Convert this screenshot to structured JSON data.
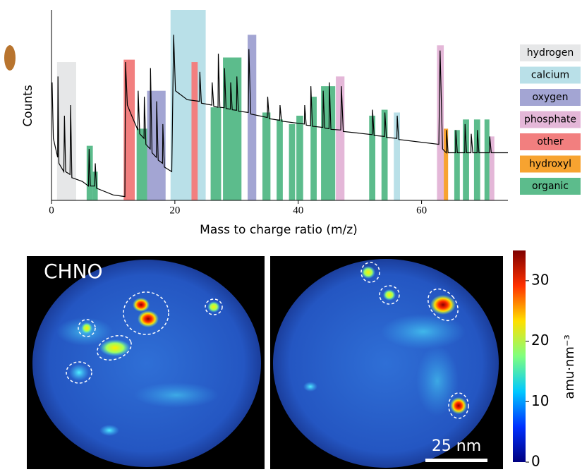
{
  "chart_data": [
    {
      "type": "spectrum",
      "xlabel": "Mass to charge ratio (m/z)",
      "ylabel": "Counts",
      "xlim": [
        0,
        74
      ],
      "xticks": [
        0,
        20,
        40,
        60
      ],
      "ylim": [
        1,
        10000
      ],
      "log_scale": true,
      "series": [
        {
          "name": "hydrogen",
          "color": "#e6e7e8",
          "x0": [
            0.9
          ],
          "x1": [
            4
          ],
          "values": [
            800
          ]
        },
        {
          "name": "calcium",
          "color": "#b9e0e8",
          "x0": [
            19.3,
            55.5
          ],
          "x1": [
            25,
            56.5
          ],
          "values": [
            10000,
            70
          ]
        },
        {
          "name": "oxygen",
          "color": "#a3a5d3",
          "x0": [
            15.5,
            31.8
          ],
          "x1": [
            18.5,
            33.2
          ],
          "values": [
            200,
            3000
          ]
        },
        {
          "name": "phosphate",
          "color": "#e4b7d8",
          "x0": [
            46.1,
            62.5,
            71
          ],
          "x1": [
            47.5,
            63.6,
            71.8
          ],
          "values": [
            400,
            1800,
            22
          ]
        },
        {
          "name": "other",
          "color": "#f27f7f",
          "x0": [
            11.7,
            22.7
          ],
          "x1": [
            13.5,
            23.7
          ],
          "values": [
            900,
            800
          ]
        },
        {
          "name": "hydroxyl",
          "color": "#f7a330",
          "x0": [
            63.6
          ],
          "x1": [
            64.3
          ],
          "values": [
            32
          ]
        },
        {
          "name": "organic",
          "color": "#5cbc8c",
          "x0": [
            5.7,
            6.7,
            13.8,
            25.8,
            27.8,
            34.2,
            36.5,
            38.5,
            39.7,
            42,
            43.7,
            51.5,
            53.5,
            65.3,
            66.7,
            68.5,
            70.2
          ],
          "x1": [
            6.7,
            7.5,
            15.5,
            27.5,
            30.8,
            35.5,
            37.5,
            39.5,
            40.8,
            43,
            46,
            52.5,
            54.5,
            66.2,
            67.7,
            69.5,
            71
          ],
          "values": [
            14,
            4,
            32,
            90,
            1000,
            70,
            50,
            40,
            60,
            150,
            250,
            60,
            80,
            30,
            50,
            50,
            50
          ]
        }
      ],
      "line": {
        "color": "#000000",
        "x": [
          0.1,
          0.3,
          1,
          1.05,
          1.2,
          2,
          2.1,
          2.3,
          3,
          3.1,
          3.3,
          5,
          6,
          6.1,
          6.3,
          7,
          7.1,
          7.3,
          10,
          11.9,
          12,
          12.3,
          13,
          14,
          14.05,
          14.3,
          15,
          15.05,
          15.3,
          16,
          16.05,
          16.3,
          17,
          17.05,
          17.3,
          18,
          18.05,
          18.3,
          19.5,
          19.8,
          20.1,
          22,
          24,
          24.05,
          24.3,
          26,
          26.05,
          26.3,
          27,
          27.05,
          27.3,
          28,
          28.05,
          28.3,
          29,
          29.05,
          29.3,
          30,
          30.05,
          30.3,
          31.9,
          32,
          32.3,
          35,
          35.05,
          35.3,
          37,
          37.05,
          37.3,
          41,
          41.05,
          41.3,
          42,
          42.05,
          42.3,
          44,
          44.05,
          44.3,
          45,
          45.05,
          45.3,
          46.9,
          47,
          47.3,
          52,
          52.05,
          52.3,
          54,
          54.05,
          54.3,
          56,
          56.05,
          56.3,
          62.8,
          63,
          63.4,
          64,
          64.05,
          64.3,
          65.5,
          65.55,
          65.8,
          67,
          67.05,
          67.3,
          68,
          68.05,
          68.3,
          69,
          69.05,
          69.3,
          71,
          71.05,
          71.3,
          74
        ],
        "values": [
          300,
          20,
          8,
          400,
          6,
          4,
          60,
          4,
          3.5,
          100,
          3,
          2.5,
          2,
          12,
          2,
          2,
          6,
          1.8,
          1.3,
          1.2,
          800,
          100,
          60,
          30,
          200,
          25,
          20,
          150,
          15,
          12,
          600,
          10,
          8,
          120,
          7,
          6,
          40,
          5,
          4,
          3000,
          200,
          130,
          120,
          500,
          110,
          100,
          300,
          95,
          90,
          1200,
          90,
          88,
          600,
          85,
          82,
          300,
          80,
          78,
          400,
          75,
          70,
          1500,
          65,
          55,
          150,
          52,
          48,
          100,
          46,
          40,
          100,
          38,
          37,
          250,
          36,
          34,
          200,
          33,
          32,
          300,
          31,
          30,
          250,
          28,
          24,
          80,
          23,
          22,
          70,
          21,
          20,
          60,
          19,
          15,
          1400,
          12,
          10,
          30,
          10,
          10,
          30,
          10,
          10,
          40,
          10,
          10,
          25,
          10,
          10,
          30,
          10,
          10,
          22,
          10,
          10
        ]
      }
    },
    {
      "type": "colorbar",
      "label": "amu·nm⁻³",
      "ylim": [
        0,
        35
      ],
      "yticks": [
        0,
        10,
        20,
        30
      ],
      "colors": [
        "#00007f",
        "#0030ff",
        "#00c8ff",
        "#7fff7f",
        "#ffe000",
        "#ff3000",
        "#7f0000"
      ]
    }
  ],
  "panels": {
    "label": "CHNO",
    "scale_bar": "25 nm"
  }
}
